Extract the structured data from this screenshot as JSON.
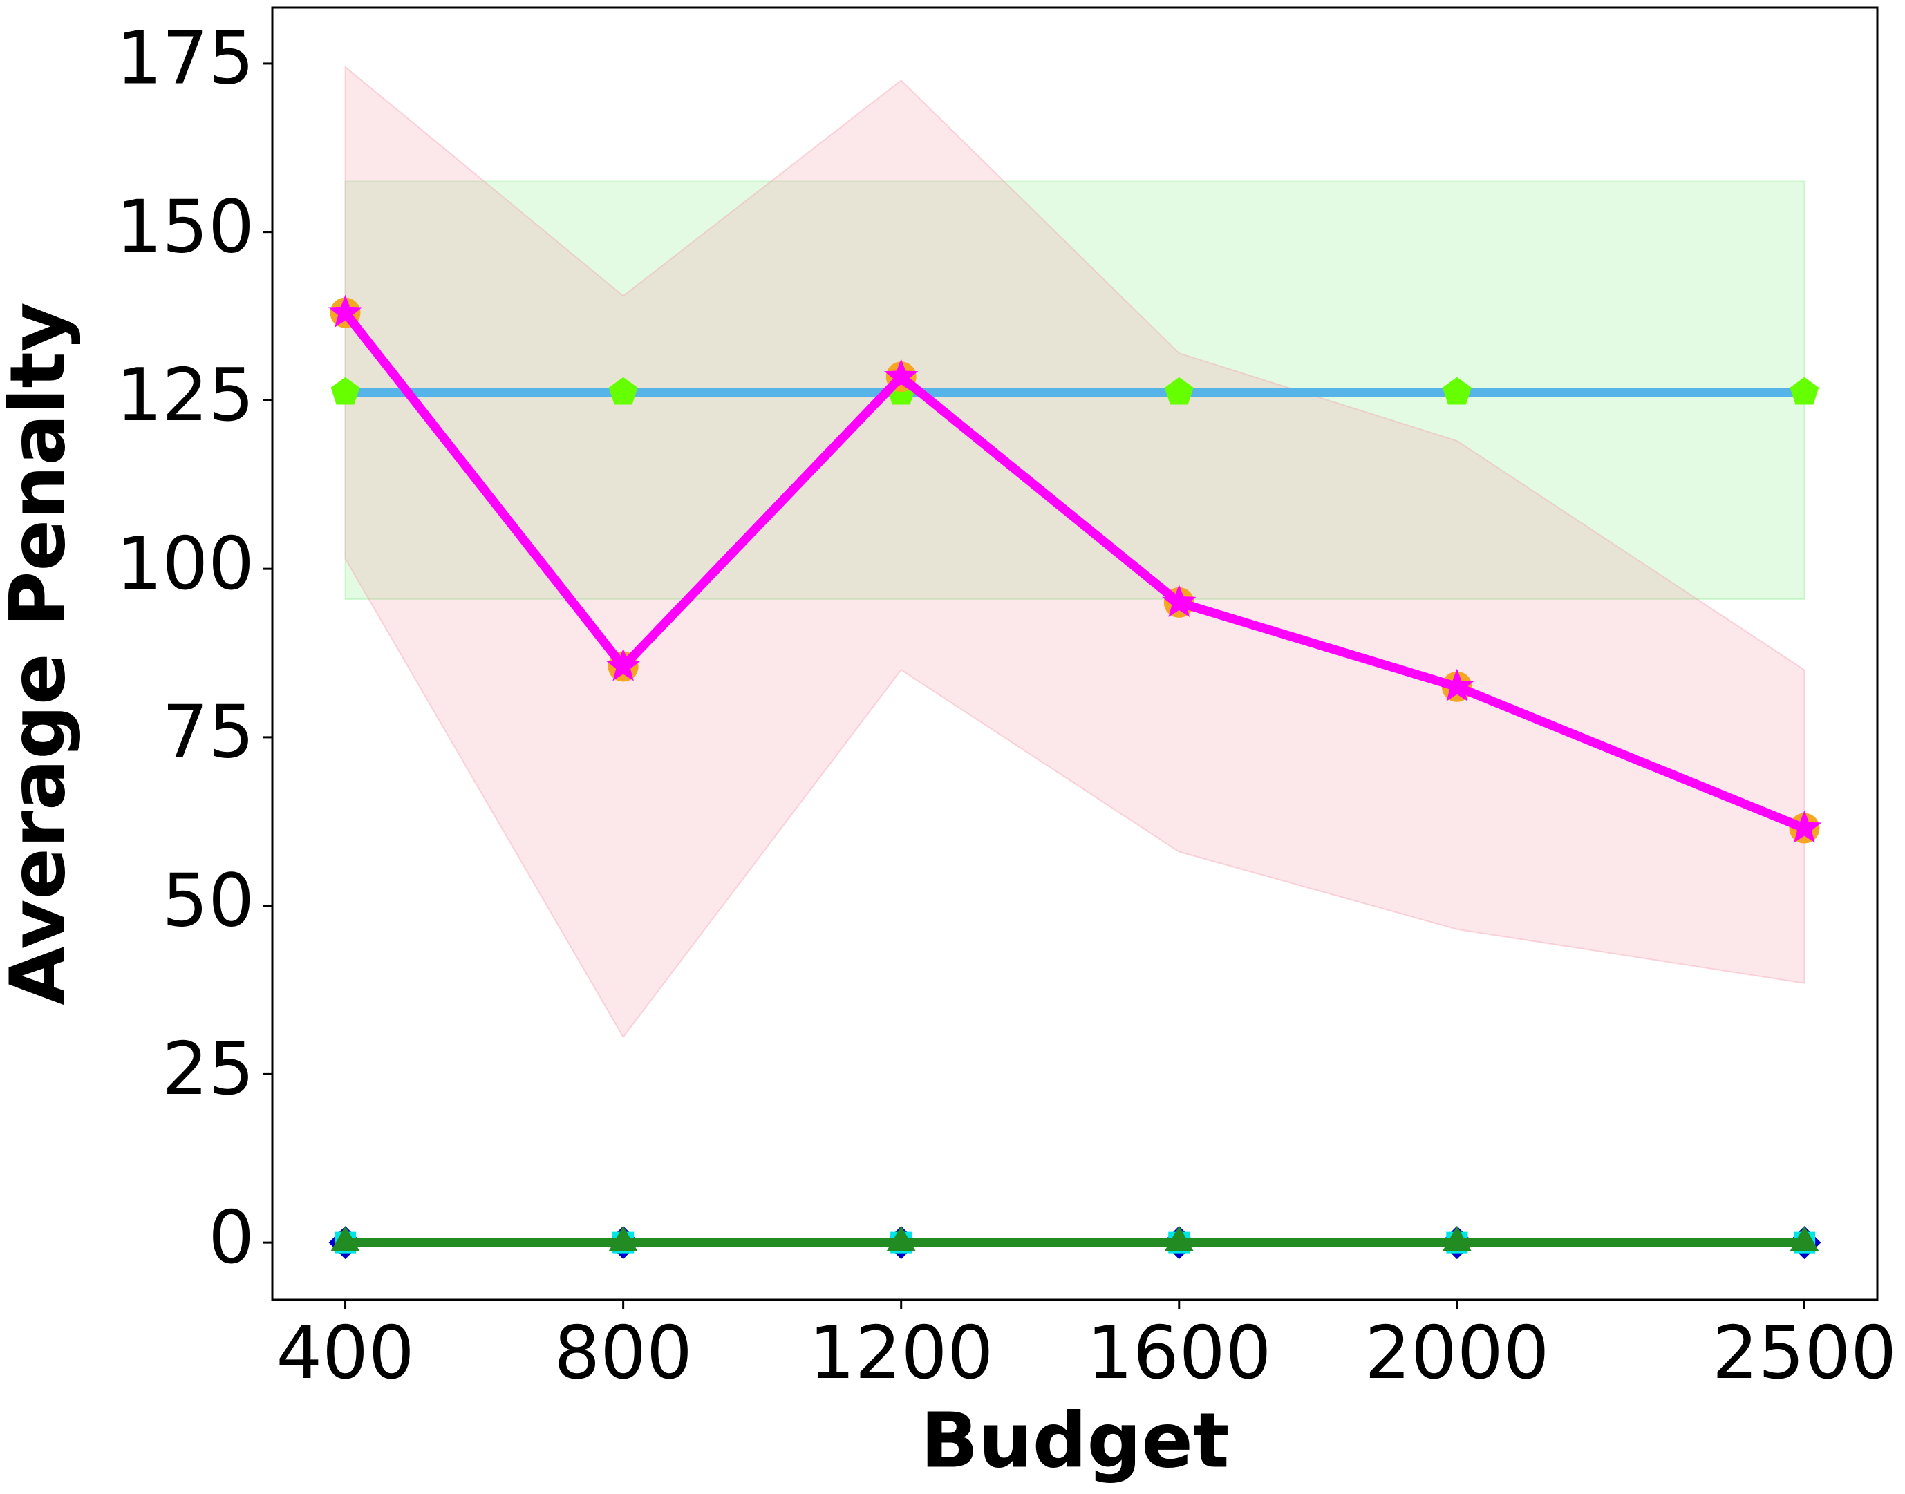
{
  "chart_data": {
    "type": "line",
    "xlabel": "Budget",
    "ylabel": "Average Penalty",
    "x": [
      400,
      800,
      1200,
      1600,
      2000,
      2500
    ],
    "xlim": [
      295,
      2605
    ],
    "xticks": [
      400,
      800,
      1200,
      1600,
      2000,
      2500
    ],
    "ylim": [
      -8.5,
      183.3
    ],
    "yticks": [
      0,
      25,
      50,
      75,
      100,
      125,
      150,
      175
    ],
    "series": [
      {
        "color": "#56b4e9",
        "marker": "pentagon",
        "marker_color": "#66ff00",
        "values": [
          126.2,
          126.2,
          126.2,
          126.2,
          126.2,
          126.2
        ],
        "lower": [
          95.5,
          95.5,
          95.5,
          95.5,
          95.5,
          95.5
        ],
        "upper": [
          157.5,
          157.5,
          157.5,
          157.5,
          157.5,
          157.5
        ],
        "band_color": "#90ee90"
      },
      {
        "color": "#ffa500",
        "marker": "circle",
        "marker_color": "#f5a623",
        "line": false,
        "values": [
          138,
          85.5,
          128.5,
          95,
          82.5,
          61.5
        ]
      },
      {
        "color": "#ff00ff",
        "marker": "star",
        "marker_color": "#ff00ff",
        "values": [
          138,
          85.5,
          128.5,
          95,
          82.5,
          61.5
        ],
        "lower": [
          101.5,
          30.5,
          85,
          58,
          46.5,
          38.5
        ],
        "upper": [
          174.5,
          140.5,
          172.5,
          132,
          119,
          85
        ],
        "band_color": "#f4a0b0"
      },
      {
        "color": "#0000cd",
        "marker": "diamond",
        "marker_color": "#0000cd",
        "line": false,
        "values": [
          0,
          0,
          0,
          0,
          0,
          0
        ]
      },
      {
        "color": "#00e5e5",
        "marker": "square",
        "marker_color": "#00e5e5",
        "line": false,
        "values": [
          0,
          0,
          0,
          0,
          0,
          0
        ]
      },
      {
        "color": "#228b22",
        "marker": "triangle",
        "marker_color": "#228b22",
        "values": [
          0,
          0,
          0,
          0,
          0,
          0
        ]
      }
    ]
  }
}
